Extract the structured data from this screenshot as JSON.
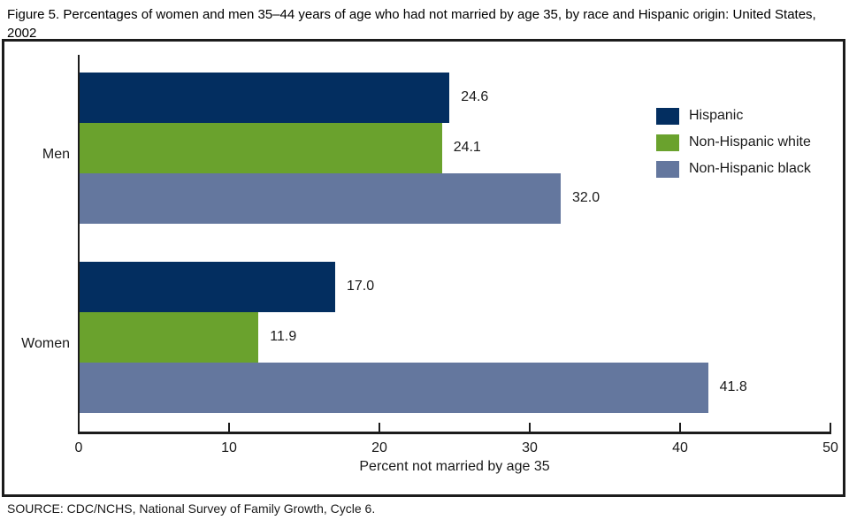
{
  "title": "Figure 5. Percentages of women and men 35–44 years of age who had not married by age 35, by race and Hispanic origin: United States, 2002",
  "source": "SOURCE: CDC/NCHS, National Survey of Family Growth, Cycle 6.",
  "chart_data": {
    "type": "bar",
    "orientation": "horizontal",
    "title": "Figure 5. Percentages of women and men 35–44 years of age who had not married by age 35, by race and Hispanic origin: United States, 2002",
    "categories": [
      "Men",
      "Women"
    ],
    "series": [
      {
        "name": "Hispanic",
        "color": "#032e60",
        "values": [
          24.6,
          17.0
        ]
      },
      {
        "name": "Non-Hispanic white",
        "color": "#6aa22d",
        "values": [
          24.1,
          11.9
        ]
      },
      {
        "name": "Non-Hispanic black",
        "color": "#64779e",
        "values": [
          32.0,
          41.8
        ]
      }
    ],
    "value_labels": [
      "24.6",
      "24.1",
      "32.0",
      "17.0",
      "11.9",
      "41.8"
    ],
    "xlabel": "Percent not married by age 35",
    "ylabel": "",
    "xlim": [
      0,
      50
    ],
    "xticks": [
      0,
      10,
      20,
      30,
      40,
      50
    ],
    "grid": false,
    "legend_position": "top-right"
  }
}
